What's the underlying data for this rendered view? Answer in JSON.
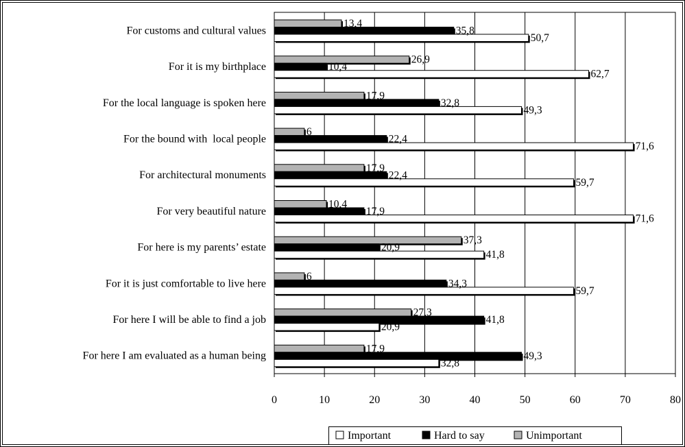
{
  "chart_data": {
    "type": "bar",
    "orientation": "horizontal",
    "categories": [
      "For customs and cultural values",
      "For it is my birthplace",
      "For the local language is spoken here",
      "For the bound with  local people",
      "For architectural monuments",
      "For very beautiful nature",
      "For here is my parents’ estate",
      "For it is just comfortable to live here",
      "For here I will be able to find a job",
      "For here I am evaluated as a human being"
    ],
    "series": [
      {
        "name": "Important",
        "color": "#ffffff",
        "values": [
          50.7,
          62.7,
          49.3,
          71.6,
          59.7,
          71.6,
          41.8,
          59.7,
          20.9,
          32.8
        ]
      },
      {
        "name": "Hard to say",
        "color": "#000000",
        "values": [
          35.8,
          10.4,
          32.8,
          22.4,
          22.4,
          17.9,
          20.9,
          34.3,
          41.8,
          49.3
        ]
      },
      {
        "name": "Unimportant",
        "color": "#b3b3b3",
        "values": [
          13.4,
          26.9,
          17.9,
          6,
          17.9,
          10.4,
          37.3,
          6,
          27.3,
          17.9
        ]
      }
    ],
    "data_labels": [
      [
        "50,7",
        "62,7",
        "49,3",
        "71,6",
        "59,7",
        "71,6",
        "41,8",
        "59,7",
        "20,9",
        "32,8"
      ],
      [
        "35,8",
        "10,4",
        "32,8",
        "22,4",
        "22,4",
        "17,9",
        "20,9",
        "34,3",
        "41,8",
        "49,3"
      ],
      [
        "13,4",
        "26,9",
        "17,9",
        "6",
        "17,9",
        "10,4",
        "37,3",
        "6",
        "27,3",
        "17,9"
      ]
    ],
    "xlim": [
      0,
      80
    ],
    "xticks": [
      "0",
      "10",
      "20",
      "30",
      "40",
      "50",
      "60",
      "70",
      "80"
    ],
    "grid": "vertical",
    "legend_position": "bottom-right",
    "legend_symbols": [
      "□",
      "■",
      "■"
    ]
  }
}
